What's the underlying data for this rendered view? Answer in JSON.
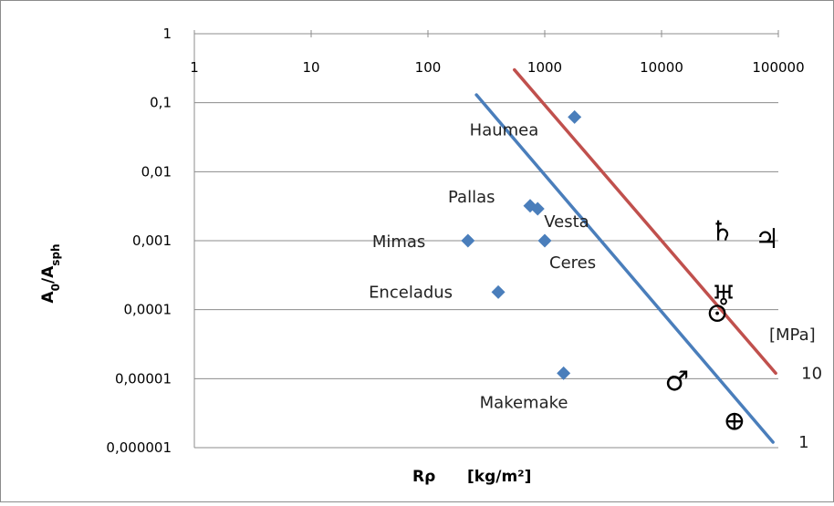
{
  "chart_data": {
    "type": "scatter",
    "x_scale": "log",
    "y_scale": "log",
    "xlim": [
      1,
      100000
    ],
    "ylim": [
      1e-06,
      1
    ],
    "x_ticks": [
      "1",
      "10",
      "100",
      "1000",
      "10000",
      "100000"
    ],
    "y_ticks": [
      "1",
      "0,1",
      "0,01",
      "0,001",
      "0,0001",
      "0,00001",
      "0,000001"
    ],
    "y_tick_values": [
      1,
      0.1,
      0.01,
      0.001,
      0.0001,
      1e-05,
      1e-06
    ],
    "x_tick_values": [
      1,
      10,
      100,
      1000,
      10000,
      100000
    ],
    "xlabel_main": "Rρ",
    "xlabel_unit": "[kg/m²]",
    "ylabel_main": "A",
    "ylabel_sub1": "0",
    "ylabel_mid": "/A",
    "ylabel_sub2": "sph",
    "grid": "horizontal",
    "marker_color": "#4a7ebb",
    "points": [
      {
        "name": "Haumea",
        "x": 1800,
        "y": 0.062
      },
      {
        "name": "Pallas",
        "x": 750,
        "y": 0.0032
      },
      {
        "name": "Vesta",
        "x": 870,
        "y": 0.0029
      },
      {
        "name": "Mimas",
        "x": 220,
        "y": 0.001
      },
      {
        "name": "Ceres",
        "x": 1000,
        "y": 0.001
      },
      {
        "name": "Enceladus",
        "x": 400,
        "y": 0.00018
      },
      {
        "name": "Makemake",
        "x": 1450,
        "y": 1.2e-05
      }
    ],
    "lines": [
      {
        "label": "10",
        "color": "#c0504d",
        "x": [
          550,
          95000
        ],
        "y": [
          0.3,
          1.2e-05
        ]
      },
      {
        "label": "1",
        "color": "#4a7ebb",
        "x": [
          260,
          90000
        ],
        "y": [
          0.13,
          1.2e-06
        ]
      }
    ],
    "line_unit": "[MPa]",
    "planet_symbols": [
      {
        "symbol": "♄",
        "name": "saturn-symbol",
        "x": 33000,
        "y": 0.0013
      },
      {
        "symbol": "♃",
        "name": "jupiter-symbol",
        "x": 80000,
        "y": 0.001
      },
      {
        "symbol": "♅",
        "name": "uranus-symbol",
        "x": 34000,
        "y": 0.00015
      },
      {
        "symbol": "⊙",
        "name": "sun-symbol",
        "x": 30000,
        "y": 8.5e-05
      },
      {
        "symbol": "♂",
        "name": "mars-symbol",
        "x": 13500,
        "y": 8.5e-06
      },
      {
        "symbol": "⊕",
        "name": "earth-symbol",
        "x": 42000,
        "y": 2.3e-06
      }
    ]
  }
}
